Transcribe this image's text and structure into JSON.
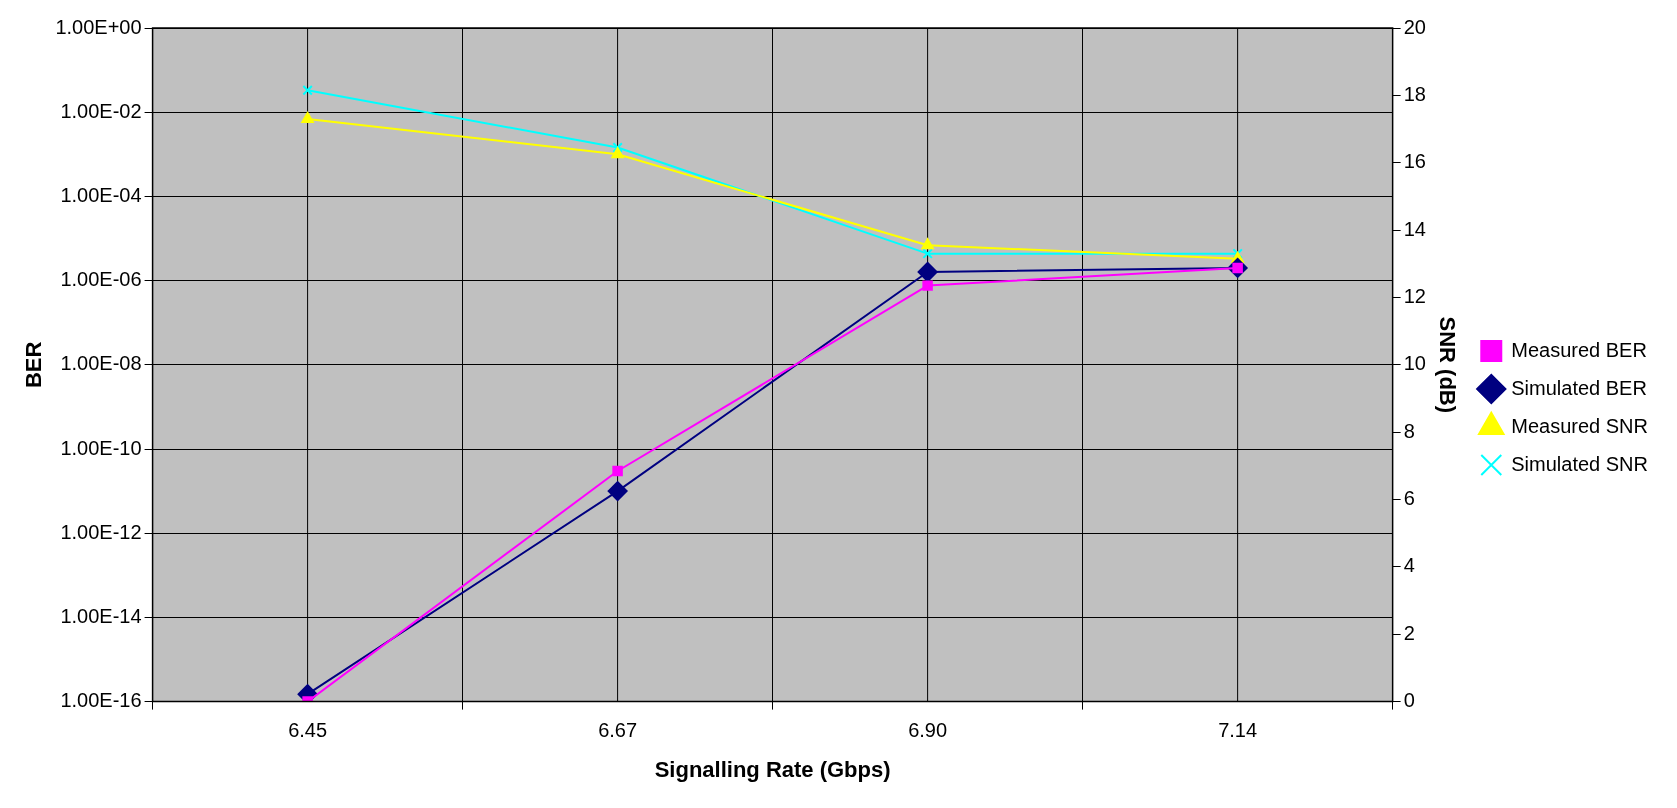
{
  "chart_data": {
    "type": "line",
    "xlabel": "Signalling Rate (Gbps)",
    "ylabel": "BER",
    "y2label": "SNR (dB)",
    "categories": [
      "6.45",
      "6.67",
      "6.90",
      "7.14"
    ],
    "series": [
      {
        "name": "Measured BER",
        "color": "#ff00ff",
        "marker": "square",
        "values": [
          1e-16,
          3e-11,
          7.6e-07,
          2e-06
        ]
      },
      {
        "name": "Simulated BER",
        "color": "#000080",
        "marker": "diamond",
        "values": [
          1.5e-16,
          1e-11,
          1.6e-06,
          2e-06
        ]
      },
      {
        "name": "Measured SNR",
        "color": "#ffff00",
        "marker": "triangle",
        "axis": "y2",
        "values": [
          17.3,
          16.25,
          13.55,
          13.15
        ]
      },
      {
        "name": "Simulated SNR",
        "color": "#00ffff",
        "marker": "cross",
        "axis": "y2",
        "values": [
          18.15,
          16.45,
          13.3,
          13.3
        ]
      }
    ],
    "log": "y",
    "ylim": [
      1e-16,
      1
    ],
    "yticks": [
      {
        "value": 1,
        "label": "1.00E+00"
      },
      {
        "value": 0.01,
        "label": "1.00E-02"
      },
      {
        "value": 0.0001,
        "label": "1.00E-04"
      },
      {
        "value": 1e-06,
        "label": "1.00E-06"
      },
      {
        "value": 1e-08,
        "label": "1.00E-08"
      },
      {
        "value": 1e-10,
        "label": "1.00E-10"
      },
      {
        "value": 1e-12,
        "label": "1.00E-12"
      },
      {
        "value": 1e-14,
        "label": "1.00E-14"
      },
      {
        "value": 1e-16,
        "label": "1.00E-16"
      }
    ],
    "y2lim": [
      0,
      20
    ],
    "y2ticks": [
      0,
      2,
      4,
      6,
      8,
      10,
      12,
      14,
      16,
      18,
      20
    ],
    "grid": true,
    "legend": "right"
  }
}
